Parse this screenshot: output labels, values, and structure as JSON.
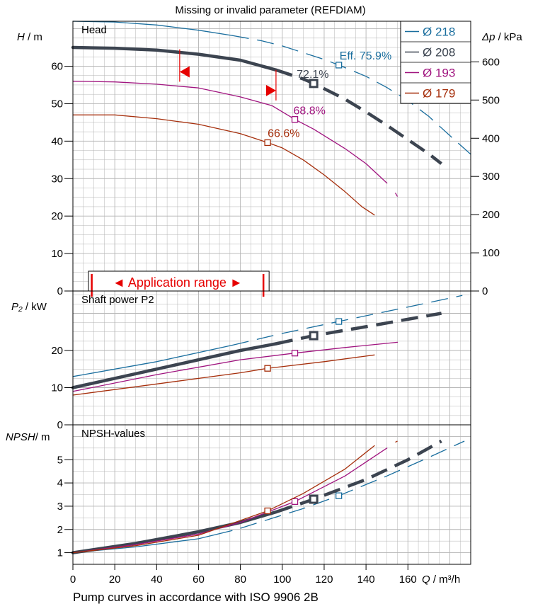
{
  "page": {
    "header": "Missing or invalid parameter (REFDIAM)",
    "footer": "Pump curves in accordance with ISO 9906 2B"
  },
  "colors": {
    "d218": "#1a6e9e",
    "d208": "#3c4450",
    "d193": "#a0147f",
    "d179": "#a62f0c",
    "range": "#e60000",
    "grid": "#b4b4b4",
    "frame": "#000000"
  },
  "chart_data": [
    {
      "id": "head",
      "type": "line",
      "title": "Head",
      "ylabel_var": "H",
      "ylabel_unit": " / m",
      "y2label_var": "Δp",
      "y2label_unit": " / kPa",
      "xlim": [
        0,
        190
      ],
      "ylim": [
        0,
        72
      ],
      "yticks": [
        0,
        10,
        20,
        30,
        40,
        50,
        60
      ],
      "y2ticks": [
        {
          "label": "0",
          "value": 0
        },
        {
          "label": "100",
          "value": 10.19
        },
        {
          "label": "200",
          "value": 20.39
        },
        {
          "label": "300",
          "value": 30.58
        },
        {
          "label": "400",
          "value": 40.77
        },
        {
          "label": "500",
          "value": 50.97
        },
        {
          "label": "600",
          "value": 61.16
        }
      ],
      "grid": true,
      "legend_position": "top-right",
      "legend": [
        {
          "label": "Ø 218",
          "color_key": "d218"
        },
        {
          "label": "Ø 208",
          "color_key": "d208"
        },
        {
          "label": "Ø 193",
          "color_key": "d193"
        },
        {
          "label": "Ø 179",
          "color_key": "d179"
        }
      ],
      "application_range": {
        "label": "◄ Application range ►",
        "q_min": 9,
        "q_max": 91
      },
      "range_markers": [
        {
          "q": 51,
          "h_top": 64.5,
          "h_arrow": 58.5,
          "direction": "left"
        },
        {
          "q": 97,
          "h_top": 59.0,
          "h_arrow": 53.5,
          "direction": "right"
        }
      ],
      "series": [
        {
          "name": "Ø 218",
          "color_key": "d218",
          "width": 1.3,
          "solid": [
            [
              0,
              72
            ],
            [
              20,
              71.8
            ],
            [
              40,
              71
            ],
            [
              60,
              69.6
            ],
            [
              76,
              68.2
            ]
          ],
          "dashed": [
            [
              76,
              68.2
            ],
            [
              90,
              66.8
            ],
            [
              100,
              65.4
            ],
            [
              110,
              63.6
            ],
            [
              120,
              61.8
            ],
            [
              127,
              60.3
            ],
            [
              140,
              57.3
            ],
            [
              150,
              54.3
            ],
            [
              160,
              50.8
            ],
            [
              170,
              46.6
            ],
            [
              180,
              41.5
            ],
            [
              190,
              36.5
            ]
          ],
          "point": [
            127,
            60.3
          ],
          "point_label": "Eff.  75.9%"
        },
        {
          "name": "Ø 208",
          "color_key": "d208",
          "width": 4.5,
          "solid": [
            [
              0,
              65
            ],
            [
              20,
              64.8
            ],
            [
              40,
              64.3
            ],
            [
              60,
              63.2
            ],
            [
              80,
              61.6
            ],
            [
              97,
              59.0
            ]
          ],
          "dashed": [
            [
              97,
              59.0
            ],
            [
              110,
              56.6
            ],
            [
              115,
              55.4
            ],
            [
              130,
              51.2
            ],
            [
              140,
              47.8
            ],
            [
              150,
              44.2
            ],
            [
              160,
              40.4
            ],
            [
              170,
              36.6
            ],
            [
              176,
              34.0
            ]
          ],
          "point": [
            115,
            55.4
          ],
          "point_label": "72.1%"
        },
        {
          "name": "Ø 193",
          "color_key": "d193",
          "width": 1.3,
          "solid": [
            [
              0,
              56
            ],
            [
              20,
              55.8
            ],
            [
              40,
              55.2
            ],
            [
              60,
              54.2
            ],
            [
              80,
              51.8
            ],
            [
              95,
              49.5
            ],
            [
              106,
              45.8
            ],
            [
              115,
              43.2
            ],
            [
              130,
              38
            ],
            [
              140,
              34
            ],
            [
              150,
              28.8
            ]
          ],
          "dashed": [
            [
              154,
              26.2
            ],
            [
              155,
              25.2
            ]
          ],
          "point": [
            106,
            45.8
          ],
          "point_label": "68.8%"
        },
        {
          "name": "Ø 179",
          "color_key": "d179",
          "width": 1.3,
          "solid": [
            [
              0,
              47
            ],
            [
              20,
              47
            ],
            [
              40,
              46
            ],
            [
              60,
              44.5
            ],
            [
              80,
              42
            ],
            [
              93,
              39.6
            ],
            [
              100,
              38.2
            ],
            [
              110,
              35
            ],
            [
              120,
              31
            ],
            [
              130,
              26.5
            ],
            [
              138,
              22.5
            ],
            [
              144,
              20.3
            ]
          ],
          "dashed": [],
          "point": [
            93,
            39.6
          ],
          "point_label": "66.6%"
        }
      ]
    },
    {
      "id": "power",
      "type": "line",
      "title": "Shaft power P2",
      "ylabel_var": "P₂",
      "ylabel_unit": " / kW",
      "xlim": [
        0,
        190
      ],
      "ylim": [
        0,
        36
      ],
      "yticks": [
        0,
        10,
        20
      ],
      "grid": true,
      "series": [
        {
          "name": "Ø 218",
          "color_key": "d218",
          "width": 1.3,
          "solid": [
            [
              0,
              13
            ],
            [
              40,
              17
            ],
            [
              76,
              21.4
            ]
          ],
          "dashed": [
            [
              76,
              21.4
            ],
            [
              100,
              24.6
            ],
            [
              127,
              27.8
            ],
            [
              160,
              31.7
            ],
            [
              186,
              34.8
            ]
          ],
          "point": [
            127,
            27.8
          ]
        },
        {
          "name": "Ø 208",
          "color_key": "d208",
          "width": 4.5,
          "solid": [
            [
              0,
              10
            ],
            [
              40,
              15
            ],
            [
              80,
              20
            ],
            [
              97,
              21.8
            ]
          ],
          "dashed": [
            [
              97,
              21.8
            ],
            [
              115,
              24
            ],
            [
              140,
              26.4
            ],
            [
              160,
              28.4
            ],
            [
              176,
              30
            ]
          ],
          "point": [
            115,
            24
          ]
        },
        {
          "name": "Ø 193",
          "color_key": "d193",
          "width": 1.3,
          "solid": [
            [
              0,
              9
            ],
            [
              40,
              13.5
            ],
            [
              80,
              17.5
            ],
            [
              106,
              19.3
            ],
            [
              130,
              20.8
            ],
            [
              155,
              22.2
            ]
          ],
          "dashed": [],
          "point": [
            106,
            19.3
          ]
        },
        {
          "name": "Ø 179",
          "color_key": "d179",
          "width": 1.3,
          "solid": [
            [
              0,
              8
            ],
            [
              40,
              11
            ],
            [
              80,
              14
            ],
            [
              93,
              15.2
            ],
            [
              120,
              17
            ],
            [
              144,
              18.8
            ]
          ],
          "dashed": [],
          "point": [
            93,
            15.2
          ]
        }
      ]
    },
    {
      "id": "npsh",
      "type": "line",
      "title": "NPSH-values",
      "ylabel_var": "NPSH",
      "ylabel_unit": "/ m",
      "xlabel_var": "Q",
      "xlabel_unit": " / m³/h",
      "xlim": [
        0,
        190
      ],
      "ylim": [
        0.5,
        6.5
      ],
      "yticks": [
        1,
        2,
        3,
        4,
        5
      ],
      "xticks": [
        0,
        20,
        40,
        60,
        80,
        100,
        120,
        140,
        160
      ],
      "grid": true,
      "series": [
        {
          "name": "Ø 218",
          "color_key": "d218",
          "width": 1.3,
          "solid": [
            [
              0,
              1
            ],
            [
              30,
              1.25
            ],
            [
              60,
              1.6
            ],
            [
              76,
              1.95
            ]
          ],
          "dashed": [
            [
              80,
              2.05
            ],
            [
              110,
              2.9
            ],
            [
              127,
              3.45
            ],
            [
              150,
              4.3
            ],
            [
              170,
              5.1
            ],
            [
              187,
              5.8
            ]
          ],
          "point": [
            127,
            3.45
          ]
        },
        {
          "name": "Ø 208",
          "color_key": "d208",
          "width": 4.5,
          "solid": [
            [
              0,
              1
            ],
            [
              30,
              1.4
            ],
            [
              60,
              1.9
            ],
            [
              80,
              2.3
            ],
            [
              97,
              2.75
            ]
          ],
          "dashed": [
            [
              97,
              2.75
            ],
            [
              115,
              3.3
            ],
            [
              140,
              4.15
            ],
            [
              160,
              5
            ],
            [
              176,
              5.8
            ]
          ],
          "point": [
            115,
            3.3
          ]
        },
        {
          "name": "Ø 193",
          "color_key": "d193",
          "width": 1.3,
          "solid": [
            [
              0,
              1
            ],
            [
              30,
              1.35
            ],
            [
              60,
              1.8
            ],
            [
              80,
              2.3
            ],
            [
              106,
              3.2
            ],
            [
              130,
              4.3
            ],
            [
              150,
              5.5
            ]
          ],
          "dashed": [],
          "point": [
            106,
            3.2
          ]
        },
        {
          "name": "Ø 179",
          "color_key": "d179",
          "width": 1.3,
          "solid": [
            [
              0,
              1
            ],
            [
              30,
              1.3
            ],
            [
              60,
              1.75
            ],
            [
              93,
              2.8
            ],
            [
              110,
              3.55
            ],
            [
              130,
              4.6
            ],
            [
              144,
              5.6
            ]
          ],
          "dashed": [
            [
              154,
              5.75
            ],
            [
              155,
              5.8
            ]
          ],
          "point": [
            93,
            2.8
          ]
        }
      ]
    }
  ]
}
